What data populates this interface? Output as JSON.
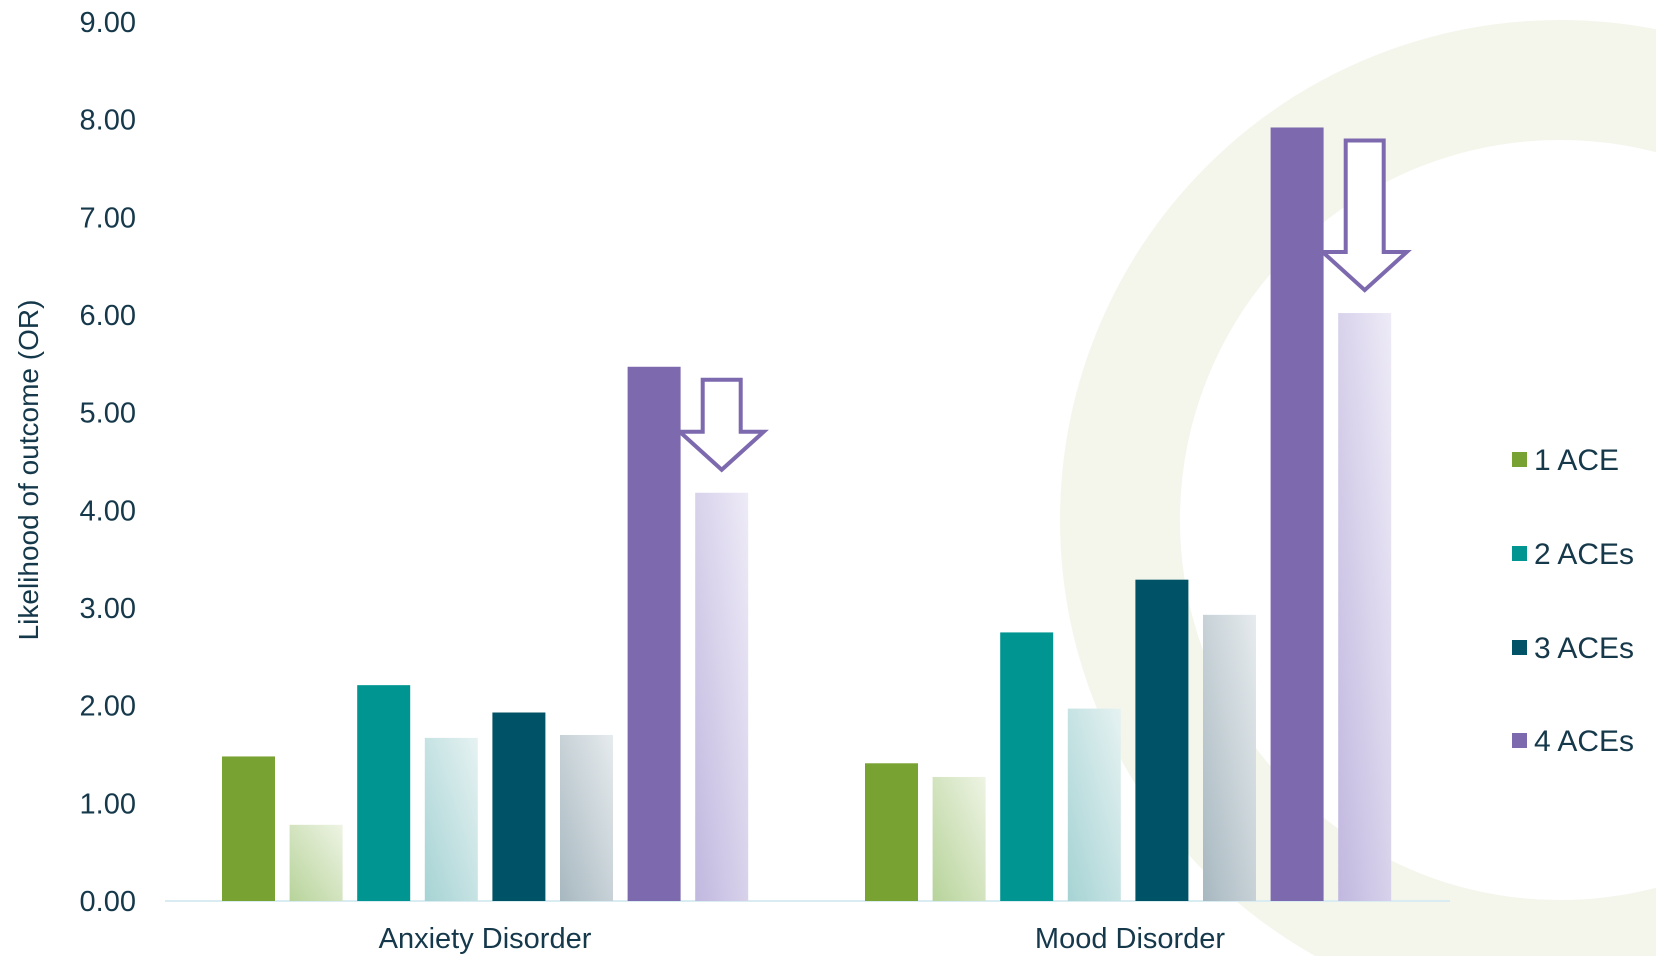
{
  "chart_data": {
    "type": "bar",
    "title": "",
    "ylabel": "Likelihood of outcome (OR)",
    "xlabel": "",
    "ylim": [
      0,
      9
    ],
    "yticks": [
      "0.00",
      "1.00",
      "2.00",
      "3.00",
      "4.00",
      "5.00",
      "6.00",
      "7.00",
      "8.00",
      "9.00"
    ],
    "grid": false,
    "legend_position": "right",
    "categories": [
      "Anxiety Disorder",
      "Mood Disorder"
    ],
    "series": [
      {
        "group": "1 ACE",
        "variant": "solid",
        "color": "#78a232",
        "values": [
          1.48,
          1.41
        ]
      },
      {
        "group": "1 ACE",
        "variant": "faded",
        "color": "#b7d39a",
        "values": [
          0.78,
          1.27
        ]
      },
      {
        "group": "2 ACEs",
        "variant": "solid",
        "color": "#009590",
        "values": [
          2.21,
          2.75
        ]
      },
      {
        "group": "2 ACEs",
        "variant": "faded",
        "color": "#a6d3d4",
        "values": [
          1.67,
          1.97
        ]
      },
      {
        "group": "3 ACEs",
        "variant": "solid",
        "color": "#005366",
        "values": [
          1.93,
          3.29
        ]
      },
      {
        "group": "3 ACEs",
        "variant": "faded",
        "color": "#a8b8c0",
        "values": [
          1.7,
          2.93
        ]
      },
      {
        "group": "4 ACEs",
        "variant": "solid",
        "color": "#7c69ae",
        "values": [
          5.47,
          7.92
        ]
      },
      {
        "group": "4 ACEs",
        "variant": "faded",
        "color": "#c1b8df",
        "values": [
          4.18,
          6.02
        ]
      }
    ],
    "legend": [
      {
        "label": "1 ACE",
        "color": "#78a232"
      },
      {
        "label": "2 ACEs",
        "color": "#009590"
      },
      {
        "label": "3 ACEs",
        "color": "#005366"
      },
      {
        "label": "4 ACEs",
        "color": "#7c69ae"
      }
    ],
    "annotations": [
      {
        "type": "down-arrow",
        "category": "Anxiety Disorder",
        "from": 5.47,
        "to": 4.18,
        "color": "#7c69ae"
      },
      {
        "type": "down-arrow",
        "category": "Mood Disorder",
        "from": 7.92,
        "to": 6.02,
        "color": "#7c69ae"
      }
    ]
  }
}
